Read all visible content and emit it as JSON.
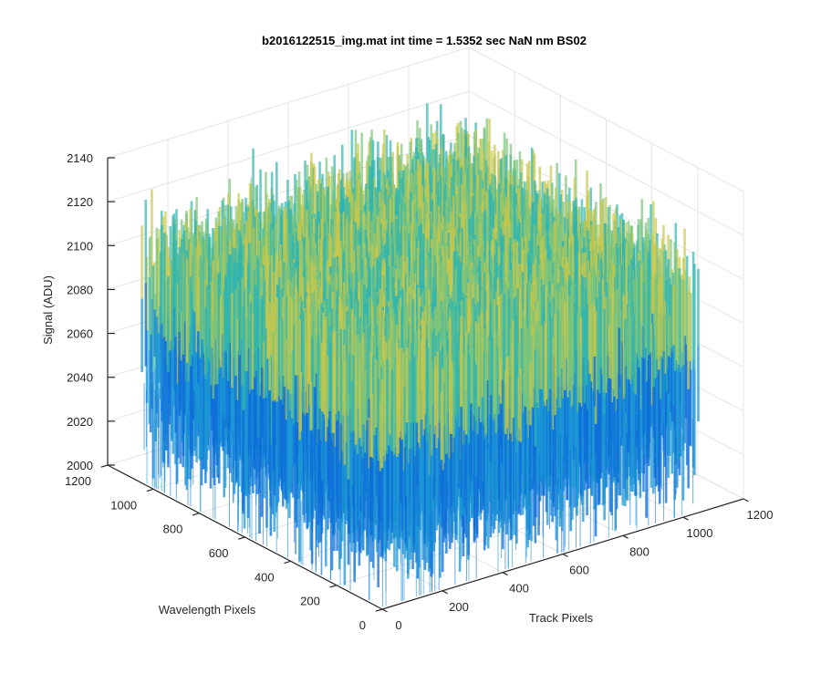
{
  "chart_data": {
    "type": "surface",
    "title": "b2016122515_img.mat int time = 1.5352 sec  NaN nm BS02",
    "xlabel": "Track Pixels",
    "ylabel": "Wavelength Pixels",
    "zlabel": "Signal (ADU)",
    "xlim": [
      0,
      1200
    ],
    "ylim": [
      0,
      1200
    ],
    "zlim": [
      2000,
      2140
    ],
    "x_ticks": [
      0,
      200,
      400,
      600,
      800,
      1000,
      1200
    ],
    "y_ticks": [
      0,
      200,
      400,
      600,
      800,
      1000,
      1200
    ],
    "z_ticks": [
      2000,
      2020,
      2040,
      2060,
      2080,
      2100,
      2120,
      2140
    ],
    "data_extent": {
      "track_pixels": [
        0,
        1050
      ],
      "wavelength_pixels": [
        0,
        1050
      ]
    },
    "signal_typical_range": [
      2005,
      2135
    ],
    "signal_mean": 2070,
    "colormap": [
      "#0f6fd8",
      "#1c97d4",
      "#2fb5b0",
      "#7cc47c",
      "#c8c84c"
    ],
    "grid": true,
    "view": {
      "azimuth": -37.5,
      "elevation": 30
    }
  }
}
